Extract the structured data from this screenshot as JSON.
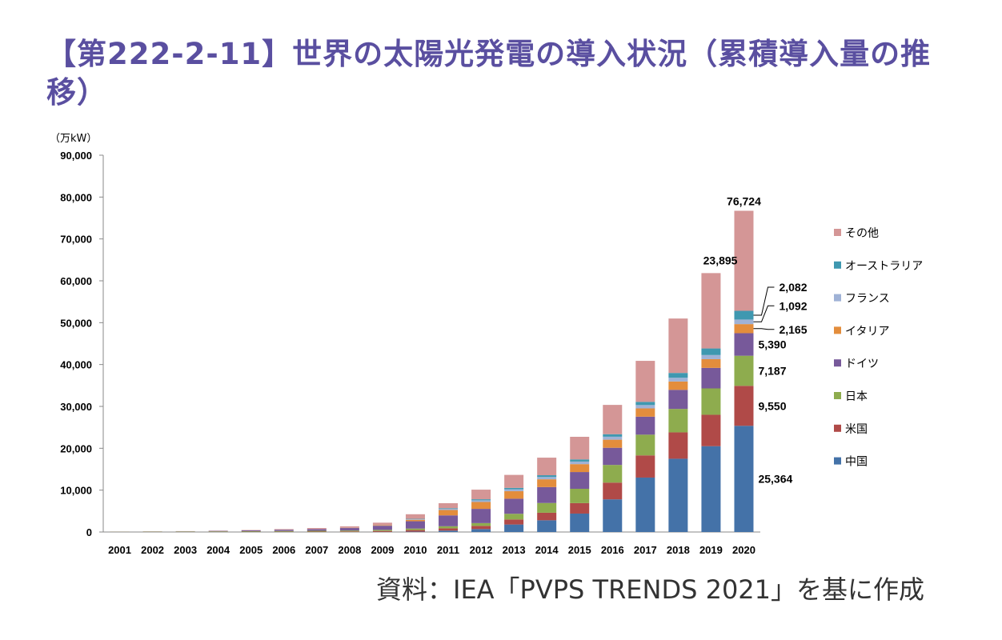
{
  "title": "【第222-2-11】世界の太陽光発電の導入状況（累積導入量の推移）",
  "source": "資料：IEA「PVPS TRENDS 2021」を基に作成",
  "colors": {
    "china": "#4472a8",
    "usa": "#b04a48",
    "japan": "#8eac4e",
    "germany": "#77599a",
    "italy": "#e38d3c",
    "france": "#9fb2d6",
    "australia": "#3f98b0",
    "other": "#d49696"
  },
  "chart_data": {
    "type": "bar",
    "stacked": true,
    "unit_label": "（万kW）",
    "ylim": [
      0,
      90000
    ],
    "yticks": [
      "90,000",
      "80,000",
      "70,000",
      "60,000",
      "50,000",
      "40,000",
      "30,000",
      "20,000",
      "10,000",
      "0"
    ],
    "categories": [
      "2001",
      "2002",
      "2003",
      "2004",
      "2005",
      "2006",
      "2007",
      "2008",
      "2009",
      "2010",
      "2011",
      "2012",
      "2013",
      "2014",
      "2015",
      "2016",
      "2017",
      "2018",
      "2019",
      "2020"
    ],
    "legend_placement": "right",
    "series": [
      {
        "name": "中国",
        "key": "china",
        "values": [
          3,
          5,
          6,
          7,
          7,
          8,
          10,
          14,
          30,
          89,
          330,
          700,
          1790,
          2800,
          4400,
          7800,
          13000,
          17500,
          20500,
          25364
        ]
      },
      {
        "name": "米国",
        "key": "usa",
        "values": [
          17,
          21,
          28,
          38,
          50,
          62,
          86,
          130,
          220,
          370,
          550,
          760,
          1200,
          1800,
          2500,
          4000,
          5300,
          6300,
          7500,
          9550
        ]
      },
      {
        "name": "日本",
        "key": "japan",
        "values": [
          45,
          64,
          86,
          113,
          142,
          171,
          192,
          214,
          263,
          362,
          491,
          666,
          1360,
          2330,
          3420,
          4220,
          4950,
          5600,
          6300,
          7187
        ]
      },
      {
        "name": "ドイツ",
        "key": "germany",
        "values": [
          19,
          30,
          43,
          104,
          200,
          290,
          390,
          590,
          990,
          1750,
          2600,
          3400,
          3600,
          3800,
          4000,
          4100,
          4300,
          4550,
          4900,
          5390
        ]
      },
      {
        "name": "イタリア",
        "key": "italy",
        "values": [
          2,
          2,
          3,
          4,
          4,
          5,
          9,
          43,
          118,
          350,
          1280,
          1640,
          1790,
          1860,
          1890,
          1930,
          1970,
          2000,
          2080,
          2165
        ]
      },
      {
        "name": "フランス",
        "key": "france",
        "values": [
          1,
          1,
          1,
          1,
          2,
          3,
          5,
          10,
          34,
          120,
          280,
          400,
          470,
          550,
          620,
          710,
          800,
          890,
          990,
          1092
        ]
      },
      {
        "name": "オーストラリア",
        "key": "australia",
        "values": [
          3,
          4,
          5,
          5,
          6,
          7,
          8,
          10,
          18,
          100,
          150,
          250,
          330,
          420,
          510,
          600,
          760,
          1150,
          1570,
          2082
        ]
      },
      {
        "name": "その他",
        "key": "other",
        "values": [
          10,
          30,
          40,
          60,
          80,
          150,
          250,
          340,
          550,
          1100,
          1200,
          2300,
          3100,
          4200,
          5400,
          7000,
          9800,
          13000,
          18000,
          23895
        ]
      }
    ],
    "annotations": {
      "total": "76,724",
      "other": "23,895",
      "australia": "2,082",
      "france": "1,092",
      "italy": "2,165",
      "germany": "5,390",
      "japan": "7,187",
      "usa": "9,550",
      "china": "25,364"
    }
  }
}
